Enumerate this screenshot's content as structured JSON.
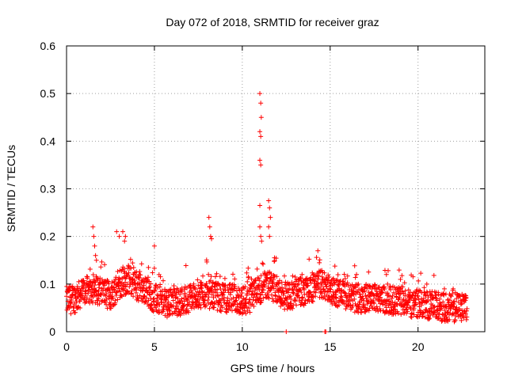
{
  "chart_data": {
    "type": "scatter",
    "title": "Day 072 of 2018, SRMTID for receiver graz",
    "xlabel": "GPS time / hours",
    "ylabel": "SRMTID / TECUs",
    "xlim": [
      0,
      23.8
    ],
    "ylim": [
      0,
      0.6
    ],
    "x_ticks": [
      0,
      5,
      10,
      15,
      20
    ],
    "y_ticks": [
      0,
      0.1,
      0.2,
      0.3,
      0.4,
      0.5,
      0.6
    ],
    "x_tick_labels": [
      "0",
      "5",
      "10",
      "15",
      "20"
    ],
    "y_tick_labels": [
      "0",
      "0.1",
      "0.2",
      "0.3",
      "0.4",
      "0.5",
      "0.6"
    ],
    "grid": true,
    "marker": "+",
    "color": "#ff0000",
    "background_level": [
      [
        0.0,
        0.065
      ],
      [
        0.5,
        0.07
      ],
      [
        1.0,
        0.085
      ],
      [
        1.5,
        0.09
      ],
      [
        2.0,
        0.085
      ],
      [
        2.5,
        0.075
      ],
      [
        3.0,
        0.1
      ],
      [
        3.5,
        0.11
      ],
      [
        4.0,
        0.095
      ],
      [
        4.5,
        0.085
      ],
      [
        5.0,
        0.07
      ],
      [
        5.5,
        0.06
      ],
      [
        6.0,
        0.06
      ],
      [
        6.5,
        0.065
      ],
      [
        7.0,
        0.07
      ],
      [
        7.5,
        0.08
      ],
      [
        8.0,
        0.08
      ],
      [
        8.5,
        0.075
      ],
      [
        9.0,
        0.07
      ],
      [
        9.5,
        0.07
      ],
      [
        10.0,
        0.065
      ],
      [
        10.5,
        0.07
      ],
      [
        11.0,
        0.09
      ],
      [
        11.5,
        0.1
      ],
      [
        12.0,
        0.085
      ],
      [
        12.5,
        0.075
      ],
      [
        13.0,
        0.08
      ],
      [
        13.5,
        0.085
      ],
      [
        14.0,
        0.09
      ],
      [
        14.5,
        0.1
      ],
      [
        15.0,
        0.09
      ],
      [
        15.5,
        0.08
      ],
      [
        16.0,
        0.075
      ],
      [
        16.5,
        0.07
      ],
      [
        17.0,
        0.07
      ],
      [
        17.5,
        0.075
      ],
      [
        18.0,
        0.07
      ],
      [
        18.5,
        0.065
      ],
      [
        19.0,
        0.065
      ],
      [
        19.5,
        0.06
      ],
      [
        20.0,
        0.06
      ],
      [
        20.5,
        0.055
      ],
      [
        21.0,
        0.055
      ],
      [
        21.5,
        0.05
      ],
      [
        22.0,
        0.05
      ],
      [
        22.5,
        0.05
      ],
      [
        22.8,
        0.05
      ]
    ],
    "points": [
      [
        1.5,
        0.22
      ],
      [
        1.55,
        0.2
      ],
      [
        1.6,
        0.18
      ],
      [
        1.65,
        0.16
      ],
      [
        1.7,
        0.15
      ],
      [
        2.85,
        0.21
      ],
      [
        3.0,
        0.2
      ],
      [
        3.2,
        0.21
      ],
      [
        3.3,
        0.19
      ],
      [
        3.35,
        0.2
      ],
      [
        5.0,
        0.18
      ],
      [
        8.1,
        0.24
      ],
      [
        8.15,
        0.22
      ],
      [
        8.2,
        0.2
      ],
      [
        8.25,
        0.195
      ],
      [
        11.0,
        0.5
      ],
      [
        11.05,
        0.48
      ],
      [
        11.08,
        0.45
      ],
      [
        11.0,
        0.42
      ],
      [
        11.05,
        0.41
      ],
      [
        11.0,
        0.36
      ],
      [
        11.05,
        0.35
      ],
      [
        11.0,
        0.265
      ],
      [
        11.0,
        0.22
      ],
      [
        11.05,
        0.2
      ],
      [
        11.1,
        0.19
      ],
      [
        11.5,
        0.275
      ],
      [
        11.55,
        0.26
      ],
      [
        11.6,
        0.24
      ],
      [
        11.5,
        0.22
      ],
      [
        11.55,
        0.2
      ],
      [
        12.5,
        0.0
      ],
      [
        14.7,
        0.0
      ],
      [
        14.75,
        0.0
      ],
      [
        21.5,
        0.09
      ],
      [
        22.0,
        0.09
      ],
      [
        20.5,
        0.1
      ],
      [
        19.0,
        0.11
      ],
      [
        18.2,
        0.12
      ],
      [
        16.5,
        0.12
      ],
      [
        13.4,
        0.12
      ],
      [
        14.3,
        0.17
      ]
    ]
  }
}
